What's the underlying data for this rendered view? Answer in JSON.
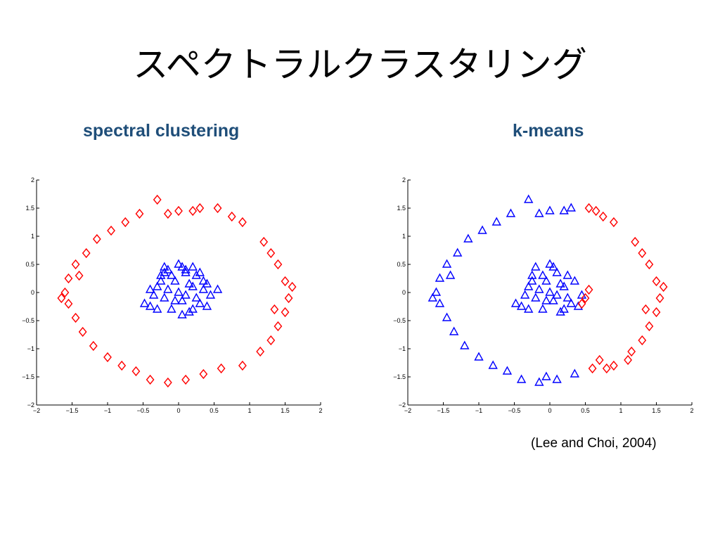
{
  "slide": {
    "title": "スペクトラルクラスタリング",
    "citation": "(Lee and Choi, 2004)"
  },
  "chart_data": [
    {
      "type": "scatter",
      "title": "spectral clustering",
      "xlim": [
        -2,
        2
      ],
      "ylim": [
        -2,
        2
      ],
      "xticks": [
        -2,
        -1.5,
        -1,
        -0.5,
        0,
        0.5,
        1,
        1.5,
        2
      ],
      "yticks": [
        2,
        1.5,
        1,
        0.5,
        0,
        -0.5,
        -1,
        -1.5,
        -2
      ],
      "xtick_labels": [
        "−2",
        "−1.5",
        "−1",
        "−0.5",
        "0",
        "0.5",
        "1",
        "1.5",
        "2"
      ],
      "ytick_labels": [
        "2",
        "1.5",
        "1",
        "0.5",
        "0",
        "−0.5",
        "−1",
        "−1.5",
        "−2"
      ],
      "grid": false,
      "series": [
        {
          "marker": "triangle",
          "color": "#0000ff",
          "points": [
            [
              -0.48,
              -0.2
            ],
            [
              -0.4,
              -0.25
            ],
            [
              -0.35,
              -0.05
            ],
            [
              -0.3,
              0.1
            ],
            [
              -0.25,
              0.3
            ],
            [
              -0.2,
              0.45
            ],
            [
              -0.15,
              0.05
            ],
            [
              -0.1,
              -0.3
            ],
            [
              -0.05,
              0.2
            ],
            [
              0,
              0.5
            ],
            [
              0.05,
              -0.15
            ],
            [
              0.1,
              0.35
            ],
            [
              0.15,
              -0.35
            ],
            [
              0.2,
              0.1
            ],
            [
              0.25,
              0.3
            ],
            [
              0.3,
              -0.2
            ],
            [
              0.35,
              0.2
            ],
            [
              0.4,
              -0.25
            ],
            [
              0.45,
              -0.05
            ],
            [
              0.55,
              0.05
            ],
            [
              -0.1,
              0.3
            ],
            [
              0.05,
              0.45
            ],
            [
              0.2,
              -0.3
            ],
            [
              -0.3,
              -0.3
            ],
            [
              0.25,
              -0.1
            ],
            [
              -0.25,
              0.2
            ],
            [
              0,
              0
            ],
            [
              0.1,
              -0.05
            ],
            [
              -0.05,
              -0.15
            ],
            [
              0.15,
              0.15
            ],
            [
              -0.2,
              -0.1
            ],
            [
              0.35,
              0.05
            ],
            [
              -0.4,
              0.05
            ],
            [
              0.1,
              0.4
            ],
            [
              -0.15,
              0.4
            ],
            [
              0.3,
              0.35
            ],
            [
              0.05,
              -0.4
            ],
            [
              -0.2,
              0.35
            ],
            [
              0.2,
              0.45
            ],
            [
              0.4,
              0.15
            ]
          ]
        },
        {
          "marker": "diamond",
          "color": "#ff0000",
          "points": [
            [
              -0.3,
              1.65
            ],
            [
              -0.15,
              1.4
            ],
            [
              0,
              1.45
            ],
            [
              0.2,
              1.45
            ],
            [
              0.3,
              1.5
            ],
            [
              0.55,
              1.5
            ],
            [
              0.75,
              1.35
            ],
            [
              0.9,
              1.25
            ],
            [
              1.2,
              0.9
            ],
            [
              1.3,
              0.7
            ],
            [
              1.4,
              0.5
            ],
            [
              1.5,
              0.2
            ],
            [
              1.55,
              -0.1
            ],
            [
              1.5,
              -0.35
            ],
            [
              1.4,
              -0.6
            ],
            [
              1.3,
              -0.85
            ],
            [
              1.15,
              -1.05
            ],
            [
              0.9,
              -1.3
            ],
            [
              0.6,
              -1.35
            ],
            [
              0.35,
              -1.45
            ],
            [
              0.1,
              -1.55
            ],
            [
              -0.15,
              -1.6
            ],
            [
              -0.4,
              -1.55
            ],
            [
              -0.6,
              -1.4
            ],
            [
              -0.8,
              -1.3
            ],
            [
              -1,
              -1.15
            ],
            [
              -1.2,
              -0.95
            ],
            [
              -1.35,
              -0.7
            ],
            [
              -1.45,
              -0.45
            ],
            [
              -1.55,
              -0.2
            ],
            [
              -1.6,
              0
            ],
            [
              -1.55,
              0.25
            ],
            [
              -1.45,
              0.5
            ],
            [
              -1.3,
              0.7
            ],
            [
              -1.15,
              0.95
            ],
            [
              -0.95,
              1.1
            ],
            [
              -0.75,
              1.25
            ],
            [
              -0.55,
              1.4
            ],
            [
              -1.65,
              -0.1
            ],
            [
              1.6,
              0.1
            ],
            [
              1.35,
              -0.3
            ],
            [
              -1.4,
              0.3
            ]
          ]
        }
      ]
    },
    {
      "type": "scatter",
      "title": "k-means",
      "xlim": [
        -2,
        2
      ],
      "ylim": [
        -2,
        2
      ],
      "xticks": [
        -2,
        -1.5,
        -1,
        -0.5,
        0,
        0.5,
        1,
        1.5,
        2
      ],
      "yticks": [
        2,
        1.5,
        1,
        0.5,
        0,
        -0.5,
        -1,
        -1.5,
        -2
      ],
      "xtick_labels": [
        "−2",
        "−1.5",
        "−1",
        "−0.5",
        "0",
        "0.5",
        "1",
        "1.5",
        "2"
      ],
      "ytick_labels": [
        "2",
        "1.5",
        "1",
        "0.5",
        "0",
        "−0.5",
        "−1",
        "−1.5",
        "−2"
      ],
      "grid": false,
      "series": [
        {
          "marker": "triangle",
          "color": "#0000ff",
          "points": [
            [
              -0.48,
              -0.2
            ],
            [
              -0.4,
              -0.25
            ],
            [
              -0.35,
              -0.05
            ],
            [
              -0.3,
              0.1
            ],
            [
              -0.25,
              0.3
            ],
            [
              -0.2,
              0.45
            ],
            [
              -0.15,
              0.05
            ],
            [
              -0.1,
              -0.3
            ],
            [
              -0.05,
              0.2
            ],
            [
              0,
              0.5
            ],
            [
              0.05,
              -0.15
            ],
            [
              0.1,
              0.35
            ],
            [
              0.15,
              -0.35
            ],
            [
              0.2,
              0.1
            ],
            [
              0.25,
              0.3
            ],
            [
              0.3,
              -0.2
            ],
            [
              0.35,
              0.2
            ],
            [
              0.4,
              -0.25
            ],
            [
              0.45,
              -0.05
            ],
            [
              -0.1,
              0.3
            ],
            [
              0.05,
              0.45
            ],
            [
              0.2,
              -0.3
            ],
            [
              -0.3,
              -0.3
            ],
            [
              0.25,
              -0.1
            ],
            [
              -0.25,
              0.2
            ],
            [
              0,
              0
            ],
            [
              0.1,
              -0.05
            ],
            [
              -0.05,
              -0.15
            ],
            [
              0.15,
              0.15
            ],
            [
              -0.2,
              -0.1
            ],
            [
              -0.3,
              1.65
            ],
            [
              -0.15,
              1.4
            ],
            [
              0,
              1.45
            ],
            [
              0.2,
              1.45
            ],
            [
              0.3,
              1.5
            ],
            [
              -0.15,
              -1.6
            ],
            [
              -0.4,
              -1.55
            ],
            [
              -0.6,
              -1.4
            ],
            [
              -0.8,
              -1.3
            ],
            [
              -1,
              -1.15
            ],
            [
              -1.2,
              -0.95
            ],
            [
              -1.35,
              -0.7
            ],
            [
              -1.45,
              -0.45
            ],
            [
              -1.55,
              -0.2
            ],
            [
              -1.6,
              0
            ],
            [
              -1.55,
              0.25
            ],
            [
              -1.45,
              0.5
            ],
            [
              -1.3,
              0.7
            ],
            [
              -1.15,
              0.95
            ],
            [
              -0.95,
              1.1
            ],
            [
              -0.75,
              1.25
            ],
            [
              -0.55,
              1.4
            ],
            [
              -1.65,
              -0.1
            ],
            [
              -1.4,
              0.3
            ],
            [
              0.1,
              -1.55
            ],
            [
              0.35,
              -1.45
            ],
            [
              -0.05,
              -1.5
            ]
          ]
        },
        {
          "marker": "diamond",
          "color": "#ff0000",
          "points": [
            [
              0.55,
              1.5
            ],
            [
              0.75,
              1.35
            ],
            [
              0.9,
              1.25
            ],
            [
              1.2,
              0.9
            ],
            [
              1.3,
              0.7
            ],
            [
              1.4,
              0.5
            ],
            [
              1.5,
              0.2
            ],
            [
              1.55,
              -0.1
            ],
            [
              1.5,
              -0.35
            ],
            [
              1.4,
              -0.6
            ],
            [
              1.3,
              -0.85
            ],
            [
              1.15,
              -1.05
            ],
            [
              0.9,
              -1.3
            ],
            [
              0.6,
              -1.35
            ],
            [
              0.55,
              0.05
            ],
            [
              0.45,
              -0.2
            ],
            [
              0.5,
              -0.1
            ],
            [
              1.6,
              0.1
            ],
            [
              1.35,
              -0.3
            ],
            [
              0.65,
              1.45
            ],
            [
              1.1,
              -1.2
            ],
            [
              0.8,
              -1.35
            ],
            [
              0.7,
              -1.2
            ]
          ]
        }
      ]
    }
  ]
}
